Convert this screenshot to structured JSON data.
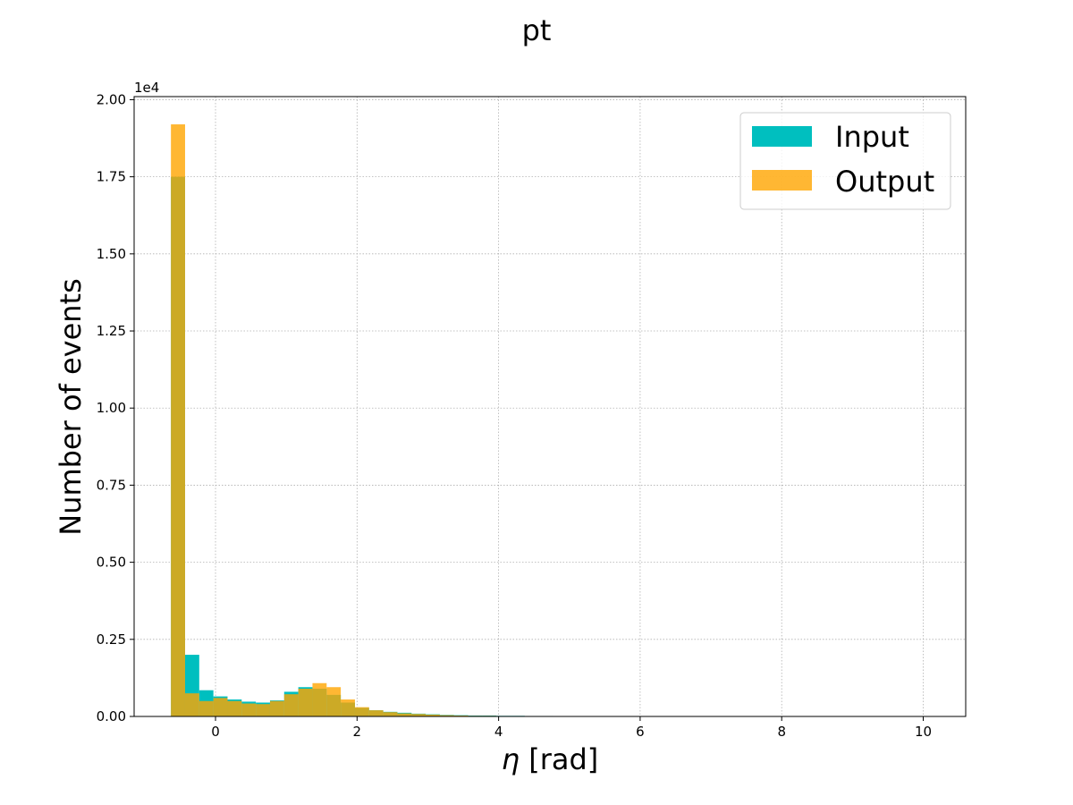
{
  "chart_data": {
    "type": "bar",
    "title": "pt",
    "xlabel_symbol": "η",
    "xlabel_unit": " [rad]",
    "ylabel": "Number of events",
    "y_offset_label": "1e4",
    "xlim": [
      -1.15,
      10.6
    ],
    "ylim": [
      0,
      2.01
    ],
    "grid": true,
    "legend_position": "top-right",
    "x_ticks": [
      0,
      2,
      4,
      6,
      8,
      10
    ],
    "x_tick_labels": [
      "0",
      "2",
      "4",
      "6",
      "8",
      "10"
    ],
    "y_ticks": [
      0,
      0.25,
      0.5,
      0.75,
      1.0,
      1.25,
      1.5,
      1.75,
      2.0
    ],
    "y_tick_labels": [
      "0.00",
      "0.25",
      "0.50",
      "0.75",
      "1.00",
      "1.25",
      "1.50",
      "1.75",
      "2.00"
    ],
    "bin_edges": [
      -0.63,
      -0.43,
      -0.23,
      -0.03,
      0.17,
      0.37,
      0.57,
      0.77,
      0.97,
      1.17,
      1.37,
      1.57,
      1.77,
      1.97,
      2.17,
      2.37,
      2.57,
      2.77,
      2.97,
      3.17,
      3.37,
      3.57,
      3.77,
      3.97,
      4.17,
      4.37,
      4.57,
      4.77,
      4.97,
      5.17,
      5.37,
      5.57,
      5.77,
      5.97,
      6.17,
      6.37,
      6.57,
      6.77,
      6.97,
      7.17,
      7.37,
      7.57,
      7.77,
      7.97,
      8.17,
      8.37,
      8.57,
      8.77,
      8.97,
      9.17,
      9.37,
      9.57,
      9.77,
      9.97,
      10.17
    ],
    "series": [
      {
        "name": "Input",
        "color": "#00bfbf",
        "opacity": 1,
        "values": [
          1.75,
          0.2,
          0.085,
          0.065,
          0.055,
          0.048,
          0.045,
          0.052,
          0.08,
          0.095,
          0.09,
          0.07,
          0.045,
          0.028,
          0.02,
          0.015,
          0.012,
          0.009,
          0.007,
          0.005,
          0.004,
          0.003,
          0.003,
          0.002,
          0.002,
          0.0015,
          0.0015,
          0.001,
          0.001,
          0.001,
          0.0008,
          0.0005,
          0.0005,
          0.0004,
          0.0003,
          0.0003,
          0.0002,
          0.0002,
          0.0002,
          0.0001,
          0.0001,
          0.0001,
          0.0001,
          0.0001,
          0.0001,
          0.0001,
          0.0001,
          0.0001,
          0.0001,
          0.0001,
          0.0001,
          0.0001,
          0.0001,
          0.0001
        ]
      },
      {
        "name": "Output",
        "color": "#ffa500",
        "opacity": 0.8,
        "values": [
          1.92,
          0.075,
          0.05,
          0.06,
          0.05,
          0.042,
          0.04,
          0.05,
          0.072,
          0.09,
          0.108,
          0.095,
          0.055,
          0.03,
          0.02,
          0.014,
          0.01,
          0.008,
          0.006,
          0.004,
          0.003,
          0.002,
          0.002,
          0.0015,
          0.0015,
          0.001,
          0.001,
          0.0008,
          0.0006,
          0.0005,
          0.0004,
          0.0003,
          0.0003,
          0.0002,
          0.0002,
          0.0001,
          0.0001,
          0.0001,
          0.0001,
          0.0001,
          0.0001,
          0.0001,
          0.0001,
          0.0001,
          0.0001,
          0.0001,
          0.0001,
          0.0001,
          0.0001,
          0.0001,
          0.0001,
          0.0001,
          0.0001,
          0.0001
        ]
      }
    ]
  }
}
